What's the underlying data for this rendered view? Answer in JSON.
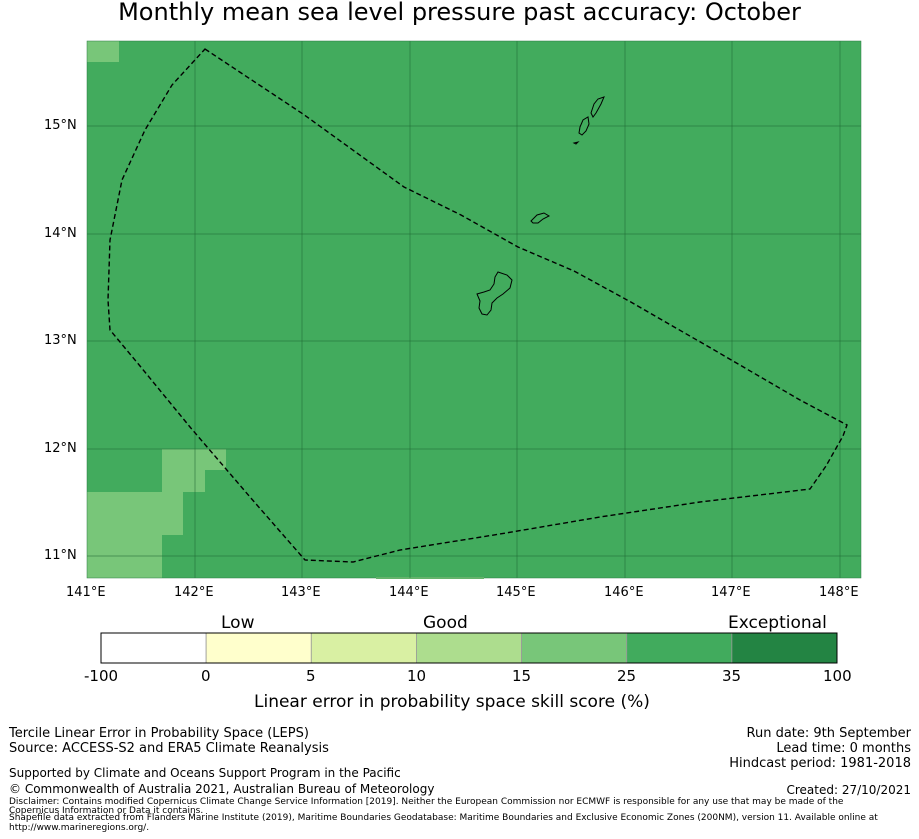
{
  "title": "Monthly mean sea level pressure past accuracy: October",
  "map": {
    "lat_ticks": [
      "15°N",
      "14°N",
      "13°N",
      "12°N",
      "11°N"
    ],
    "lon_ticks": [
      "141°E",
      "142°E",
      "143°E",
      "144°E",
      "145°E",
      "146°E",
      "147°E",
      "148°E"
    ],
    "background_color": "#42ab5d",
    "low_cell_color": "#78c679",
    "boundary_style": "dashed"
  },
  "colorbar": {
    "categories": [
      "Low",
      "Good",
      "Exceptional"
    ],
    "ticks": [
      "-100",
      "0",
      "5",
      "10",
      "15",
      "25",
      "35",
      "100"
    ],
    "colors": [
      "#ffffff",
      "#ffffcc",
      "#d9f0a3",
      "#addd8e",
      "#78c679",
      "#41ab5d",
      "#238443"
    ],
    "label": "Linear error in probability space skill score (%)"
  },
  "footer": {
    "method": "Tercile Linear Error in Probability Space (LEPS)",
    "source": "Source: ACCESS-S2 and ERA5 Climate Reanalysis",
    "support": "Supported by Climate and Oceans Support Program in the Pacific",
    "copyright": "© Commonwealth of Australia 2021, Australian Bureau of Meteorology",
    "disclaimer1": "Disclaimer: Contains modified Copernicus Climate Change Service Information [2019]. Neither the European Commission nor ECMWF is responsible for any use that may be made of the",
    "disclaimer2": "Copernicus Information or Data it contains.",
    "shapefile1": "Shapefile data extracted from Flanders Marine Institute (2019), Maritime Boundaries Geodatabase: Maritime Boundaries and Exclusive Economic Zones (200NM), version 11. Available online at",
    "shapefile2": "http://www.marineregions.org/.",
    "run_date": "Run date: 9th September",
    "lead_time": "Lead time: 0 months",
    "hindcast": "Hindcast period: 1981-2018",
    "created": "Created: 27/10/2021"
  }
}
